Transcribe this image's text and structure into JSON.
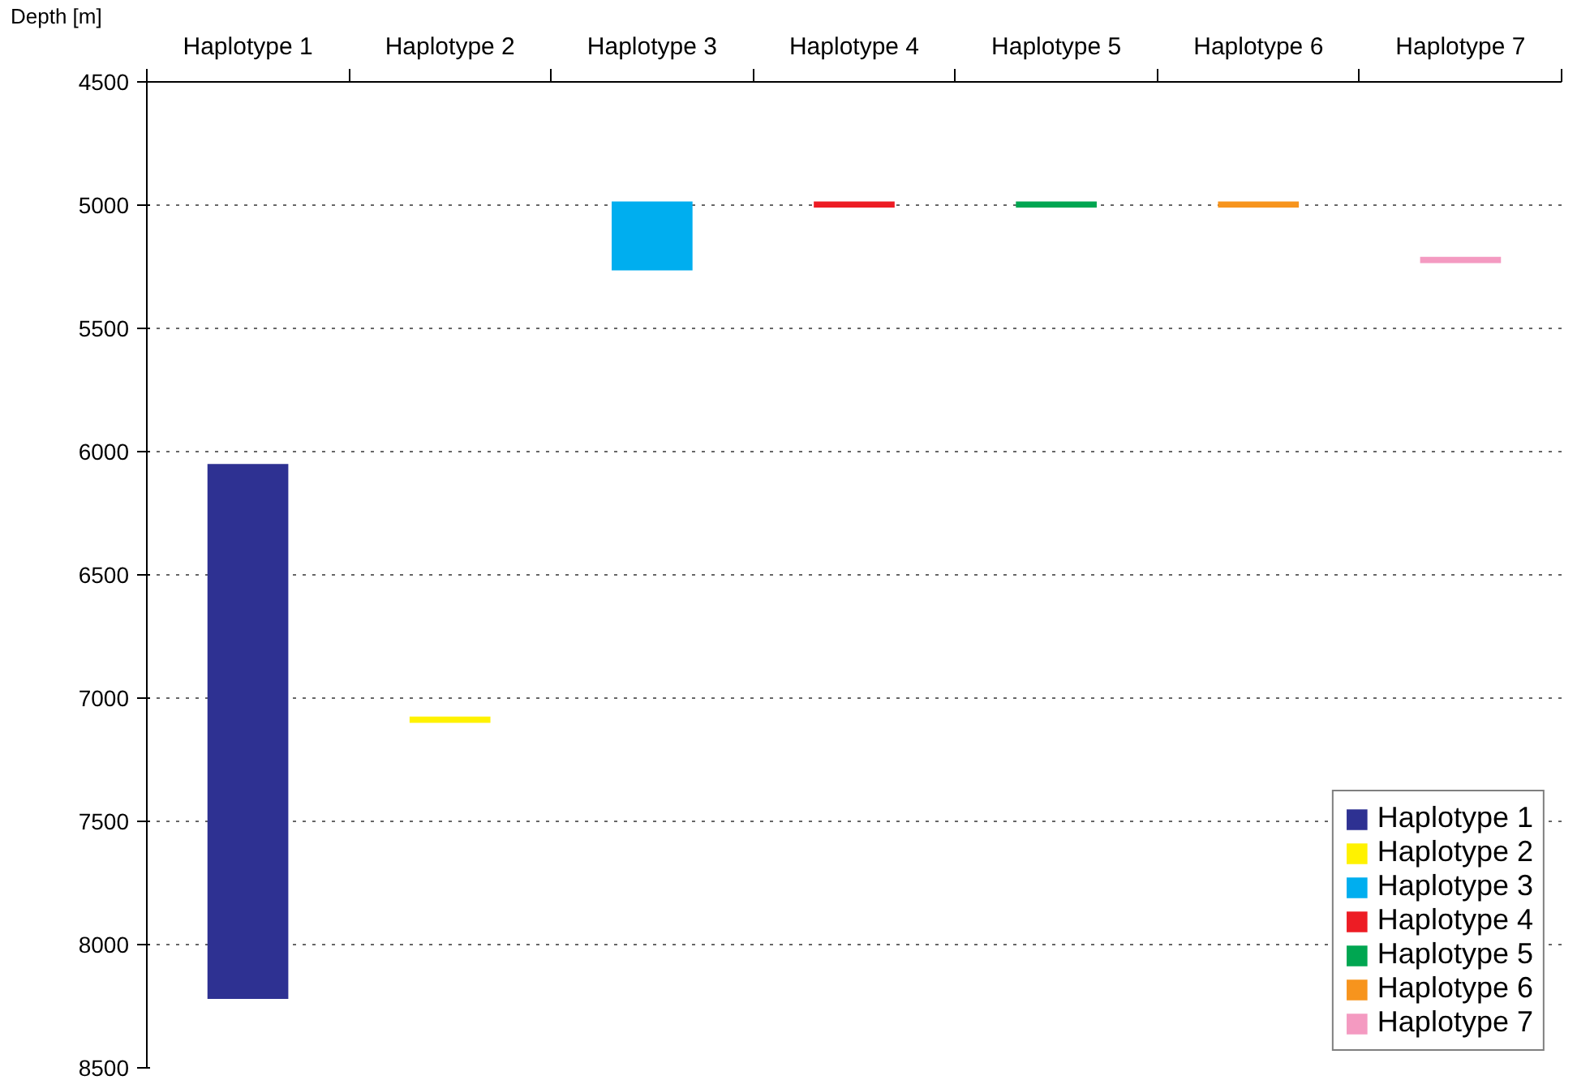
{
  "chart_data": {
    "type": "bar",
    "ylabel": "Depth [m]",
    "categories": [
      "Haplotype 1",
      "Haplotype 2",
      "Haplotype 3",
      "Haplotype 4",
      "Haplotype 5",
      "Haplotype 6",
      "Haplotype 7"
    ],
    "series": [
      {
        "name": "Haplotype 1",
        "color": "#2e3192",
        "base": [
          6050,
          null,
          null,
          null,
          null,
          null,
          null
        ],
        "values": [
          2170,
          null,
          null,
          null,
          null,
          null,
          null
        ]
      },
      {
        "name": "Haplotype 2",
        "color": "#fff200",
        "base": [
          null,
          7075,
          null,
          null,
          null,
          null,
          null
        ],
        "values": [
          null,
          25,
          null,
          null,
          null,
          null,
          null
        ]
      },
      {
        "name": "Haplotype 3",
        "color": "#00aeef",
        "base": [
          null,
          null,
          4985,
          null,
          null,
          null,
          null
        ],
        "values": [
          null,
          null,
          280,
          null,
          null,
          null,
          null
        ]
      },
      {
        "name": "Haplotype 4",
        "color": "#ed1c24",
        "base": [
          null,
          null,
          null,
          4985,
          null,
          null,
          null
        ],
        "values": [
          null,
          null,
          null,
          25,
          null,
          null,
          null
        ]
      },
      {
        "name": "Haplotype 5",
        "color": "#00a651",
        "base": [
          null,
          null,
          null,
          null,
          4985,
          null,
          null
        ],
        "values": [
          null,
          null,
          null,
          null,
          25,
          null,
          null
        ]
      },
      {
        "name": "Haplotype 6",
        "color": "#f7941d",
        "base": [
          null,
          null,
          null,
          null,
          null,
          4985,
          null
        ],
        "values": [
          null,
          null,
          null,
          null,
          null,
          25,
          null
        ]
      },
      {
        "name": "Haplotype 7",
        "color": "#f49ac1",
        "base": [
          null,
          null,
          null,
          null,
          null,
          null,
          5210
        ],
        "values": [
          null,
          null,
          null,
          null,
          null,
          null,
          25
        ]
      }
    ],
    "ylim": [
      8500,
      4500
    ],
    "yticks": [
      4500,
      5000,
      5500,
      6000,
      6500,
      7000,
      7500,
      8000,
      8500
    ],
    "grid": "y",
    "legend": "bottom right"
  }
}
